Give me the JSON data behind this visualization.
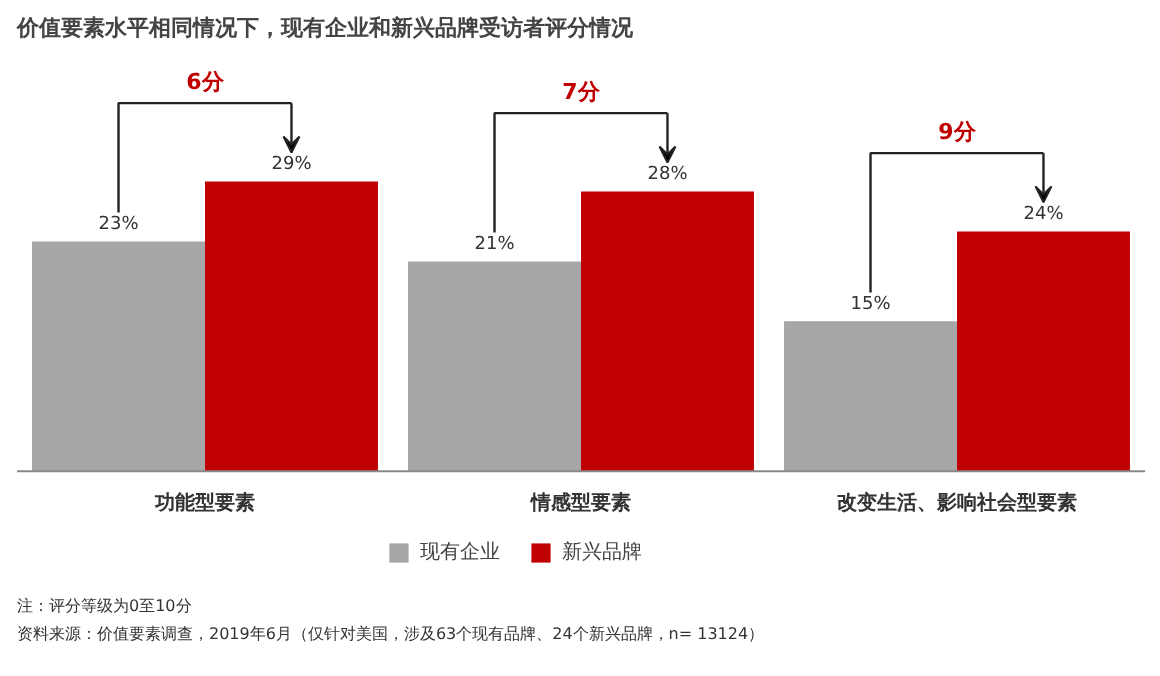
{
  "chart_data": {
    "type": "bar",
    "title": "价值要素水平相同情况下，现有企业和新兴品牌受访者评分情况",
    "categories": [
      "功能型要素",
      "情感型要素",
      "改变生活、影响社会型要素"
    ],
    "series": [
      {
        "name": "现有企业",
        "color": "#a6a6a6",
        "values": [
          23,
          21,
          15
        ],
        "value_labels": [
          "23%",
          "21%",
          "15%"
        ]
      },
      {
        "name": "新兴品牌",
        "color": "#c00000",
        "values": [
          29,
          28,
          24
        ],
        "value_labels": [
          "29%",
          "28%",
          "24%"
        ]
      }
    ],
    "legend": "bottom",
    "annotations": [
      "6分",
      "7分",
      "9分",
      "注：评分等级为0至10分",
      "资料来源：价值要素调查，2019年6月（仅针对美国，涉及63个现有品牌、24个新兴品牌，n= 13124）"
    ]
  }
}
